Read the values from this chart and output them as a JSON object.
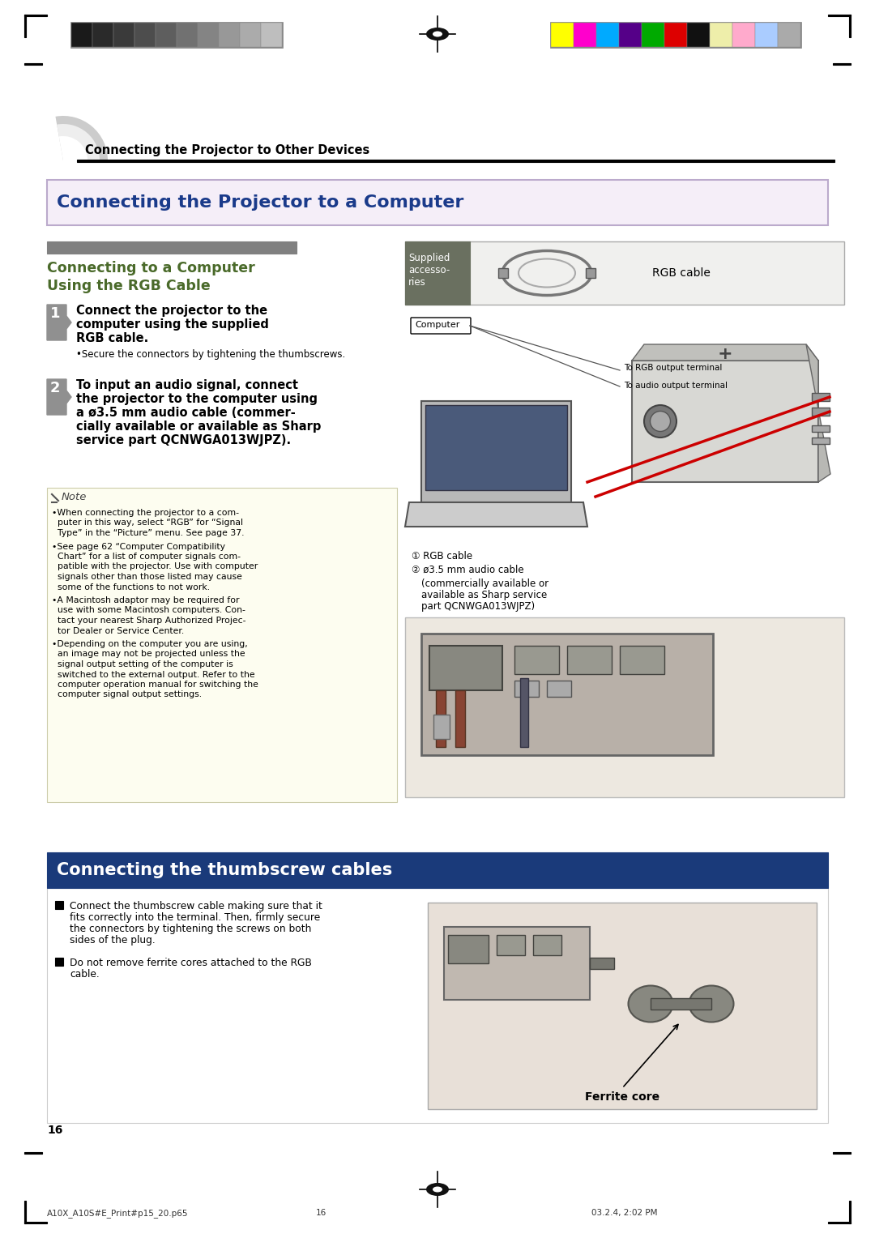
{
  "page_width": 10.8,
  "page_height": 15.28,
  "dpi": 100,
  "bg_color": "#ffffff",
  "page_number": "16",
  "footer_left": "A10X_A10S#E_Print#p15_20.p65",
  "footer_center": "16",
  "footer_right": "03.2.4, 2:02 PM",
  "header_tab_text": "Connecting the Projector to Other Devices",
  "main_title": "Connecting the Projector to a Computer",
  "main_title_color": "#1a3a8a",
  "main_title_bg": "#f5eef8",
  "main_title_border": "#bbaacc",
  "section_bar_color": "#808080",
  "section_title_line1": "Connecting to a Computer",
  "section_title_line2": "Using the RGB Cable",
  "section_title_color": "#4a6a2a",
  "step1_line1": "Connect the projector to the",
  "step1_line2": "computer using the supplied",
  "step1_line3": "RGB cable.",
  "step1_bullet": "Secure the connectors by tightening the thumbscrews.",
  "step2_line1": "To input an audio signal, connect",
  "step2_line2": "the projector to the computer using",
  "step2_line3": "a ø3.5 mm audio cable (commer-",
  "step2_line4": "cially available or available as Sharp",
  "step2_line5": "service part QCNWGA013WJPZ).",
  "note_title": "Note",
  "note_bullet1_lines": [
    "•When connecting the projector to a com-",
    "  puter in this way, select “RGB” for “Signal",
    "  Type” in the “Picture” menu. See page 37."
  ],
  "note_bullet2_lines": [
    "•See page 62 “Computer Compatibility",
    "  Chart” for a list of computer signals com-",
    "  patible with the projector. Use with computer",
    "  signals other than those listed may cause",
    "  some of the functions to not work."
  ],
  "note_bullet3_lines": [
    "•A Macintosh adaptor may be required for",
    "  use with some Macintosh computers. Con-",
    "  tact your nearest Sharp Authorized Projec-",
    "  tor Dealer or Service Center."
  ],
  "note_bullet4_lines": [
    "•Depending on the computer you are using,",
    "  an image may not be projected unless the",
    "  signal output setting of the computer is",
    "  switched to the external output. Refer to the",
    "  computer operation manual for switching the",
    "  computer signal output settings."
  ],
  "note_bg": "#fdfdf0",
  "accessories_label": "Supplied\naccesso-\nries",
  "accessories_bg": "#6a7060",
  "accessories_item": "RGB cable",
  "computer_label": "Computer",
  "rgb_output_label": "To RGB output terminal",
  "audio_output_label": "To audio output terminal",
  "cable1_label": "① RGB cable",
  "cable2_line1": "② ø3.5 mm audio cable",
  "cable2_line2": "(commercially available or",
  "cable2_line3": "available as Sharp service",
  "cable2_line4": "part QCNWGA013WJPZ)",
  "thumbscrew_title": "Connecting the thumbscrew cables",
  "thumbscrew_title_color": "#ffffff",
  "thumbscrew_title_bg": "#1a3a7a",
  "thumbscrew_text1_lines": [
    "Connect the thumbscrew cable making sure that it",
    "fits correctly into the terminal. Then, firmly secure",
    "the connectors by tightening the screws on both",
    "sides of the plug."
  ],
  "thumbscrew_text2_lines": [
    "Do not remove ferrite cores attached to the RGB",
    "cable."
  ],
  "ferrite_label": "Ferrite core",
  "gray_bars": [
    "#1a1a1a",
    "#2a2a2a",
    "#3a3a3a",
    "#4d4d4d",
    "#5e5e5e",
    "#717171",
    "#848484",
    "#989898",
    "#ababab",
    "#bebebe"
  ],
  "gray_bar_border": "#888888",
  "color_bars": [
    "#ffff00",
    "#ff00cc",
    "#00aaff",
    "#550088",
    "#00aa00",
    "#dd0000",
    "#111111",
    "#eeeeaa",
    "#ffaacc",
    "#aaccff",
    "#aaaaaa"
  ],
  "color_bar_border": "#666655"
}
